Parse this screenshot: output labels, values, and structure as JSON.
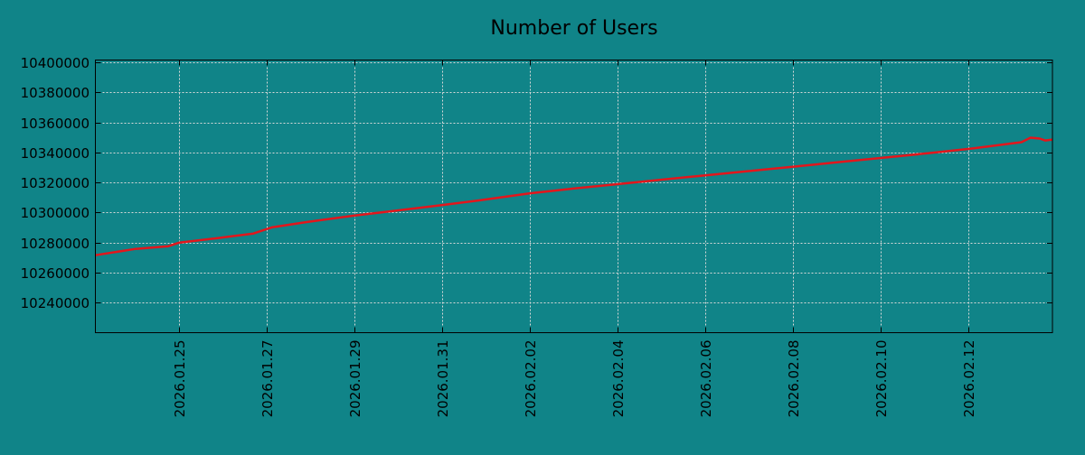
{
  "chart_data": {
    "type": "line",
    "title": "Number of Users",
    "xlabel": "",
    "ylabel": "",
    "grid": true,
    "colors": {
      "background": "#108488",
      "line": "#e3161c",
      "grid": "#d9d9d9"
    },
    "ylim": [
      10220000,
      10401600
    ],
    "yticks": [
      10240000,
      10260000,
      10280000,
      10300000,
      10320000,
      10340000,
      10360000,
      10380000,
      10400000
    ],
    "ytick_labels": [
      "10240000",
      "10260000",
      "10280000",
      "10300000",
      "10320000",
      "10340000",
      "10360000",
      "10380000",
      "10400000"
    ],
    "xlim": [
      "2026-01-23T02:00",
      "2026-02-13T22:00"
    ],
    "xticks": [
      "2026-01-25",
      "2026-01-27",
      "2026-01-29",
      "2026-01-31",
      "2026-02-02",
      "2026-02-04",
      "2026-02-06",
      "2026-02-08",
      "2026-02-10",
      "2026-02-12"
    ],
    "xtick_labels": [
      "2026.01.25",
      "2026.01.27",
      "2026.01.29",
      "2026.01.31",
      "2026.02.02",
      "2026.02.04",
      "2026.02.06",
      "2026.02.08",
      "2026.02.10",
      "2026.02.12"
    ],
    "series": [
      {
        "x": [
          "2026-01-23T02:00",
          "2026-01-24T00:00",
          "2026-01-24T18:00",
          "2026-01-25T00:00",
          "2026-01-25T21:00",
          "2026-01-26T16:30",
          "2026-01-27T02:30",
          "2026-01-27T22:00",
          "2026-01-28T23:00",
          "2026-01-30T00:00",
          "2026-01-31T00:30",
          "2026-01-31T20:00",
          "2026-02-01T23:30",
          "2026-02-02T22:00",
          "2026-02-03T22:30",
          "2026-02-04T23:00",
          "2026-02-06T00:00",
          "2026-02-07T01:00",
          "2026-02-08T01:30",
          "2026-02-09T02:00",
          "2026-02-10T03:00",
          "2026-02-11T03:30",
          "2026-02-12T02:00",
          "2026-02-13T05:00",
          "2026-02-13T10:00",
          "2026-02-13T15:00",
          "2026-02-13T18:00",
          "2026-02-13T22:00"
        ],
        "y": [
          10271600,
          10275800,
          10277600,
          10280000,
          10283000,
          10286000,
          10290100,
          10293700,
          10297900,
          10301500,
          10305100,
          10308100,
          10312800,
          10315800,
          10318800,
          10321800,
          10324800,
          10327800,
          10330700,
          10333700,
          10336700,
          10339700,
          10342700,
          10346900,
          10349900,
          10349300,
          10348000,
          10348600
        ]
      }
    ]
  }
}
